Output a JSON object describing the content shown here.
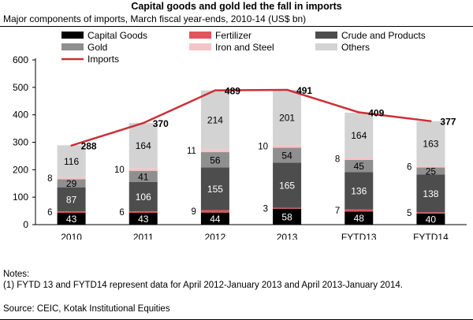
{
  "header": {
    "title": "Capital goods and gold led the fall in imports",
    "subtitle": "Major components of imports, March fiscal year-ends, 2010-14 (US$ bn)"
  },
  "notes": {
    "heading": "Notes:",
    "note1": "(1) FYTD 13 and FYTD14 represent data for April 2012-January 2013 and April 2013-January 2014.",
    "source": "Source: CEIC, Kotak Institutional Equities"
  },
  "colors": {
    "capital_goods": "#000000",
    "fertilizer": "#e0555c",
    "crude": "#4d4d4d",
    "gold": "#8f8f8f",
    "iron_steel": "#f5c4c8",
    "others": "#d3d3d3",
    "imports_line": "#cc2f36"
  },
  "chart_data": {
    "type": "bar",
    "stacked": true,
    "categories": [
      "2010",
      "2011",
      "2012",
      "2013",
      "FYTD13",
      "FYTD14"
    ],
    "series": [
      {
        "name": "Capital Goods",
        "key": "capital_goods",
        "values": [
          43,
          43,
          44,
          58,
          48,
          40
        ]
      },
      {
        "name": "Fertilizer",
        "key": "fertilizer",
        "values": [
          6,
          6,
          9,
          3,
          7,
          5
        ]
      },
      {
        "name": "Crude and Products",
        "key": "crude",
        "values": [
          87,
          106,
          155,
          165,
          136,
          138
        ]
      },
      {
        "name": "Gold",
        "key": "gold",
        "values": [
          29,
          41,
          56,
          54,
          45,
          25
        ]
      },
      {
        "name": "Iron and Steel",
        "key": "iron_steel",
        "values": [
          8,
          10,
          11,
          10,
          8,
          6
        ]
      },
      {
        "name": "Others",
        "key": "others",
        "values": [
          116,
          164,
          214,
          201,
          164,
          163
        ]
      }
    ],
    "line": {
      "name": "Imports",
      "key": "imports_line",
      "values": [
        288,
        370,
        489,
        491,
        409,
        377
      ]
    },
    "ylim": [
      0,
      600
    ],
    "yticks": [
      0,
      100,
      200,
      300,
      400,
      500,
      600
    ],
    "legend_position": "top-left",
    "grid": false
  }
}
